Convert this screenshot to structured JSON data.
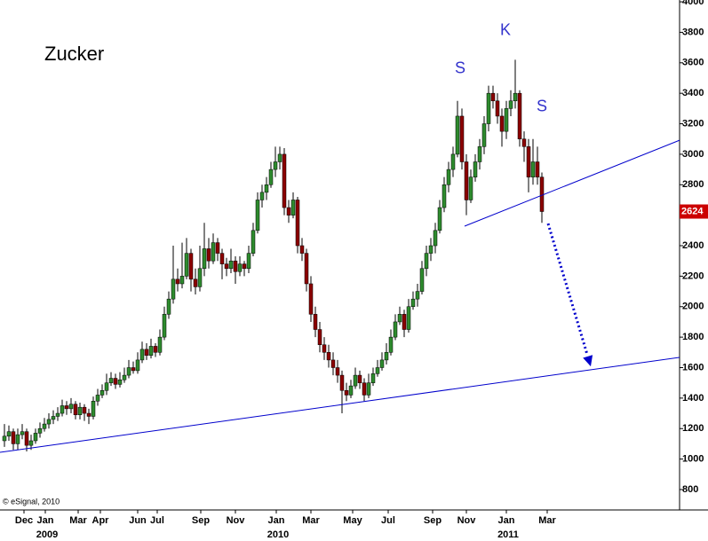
{
  "chart_data": {
    "type": "candlestick",
    "title": "Zucker",
    "watermark": "© eSignal, 2010",
    "last_price": 2624,
    "up_color": "#2e8b2e",
    "down_color": "#8b0000",
    "line_color": "#0000cc",
    "last_price_color": "#cc0000",
    "xlim": [
      -1,
      152
    ],
    "ylim": [
      666,
      4012
    ],
    "yticks": [
      800,
      1000,
      1200,
      1400,
      1600,
      1800,
      2000,
      2200,
      2400,
      2600,
      2800,
      3000,
      3200,
      3400,
      3600,
      3800,
      4000
    ],
    "xticks": [
      {
        "value": 4.4,
        "label": "Dec"
      },
      {
        "value": 9.2,
        "label": "Jan"
      },
      {
        "value": 16.6,
        "label": "Mar"
      },
      {
        "value": 21.6,
        "label": "Apr"
      },
      {
        "value": 30,
        "label": "Jun"
      },
      {
        "value": 34.4,
        "label": "Jul"
      },
      {
        "value": 44.2,
        "label": "Sep"
      },
      {
        "value": 52,
        "label": "Nov"
      },
      {
        "value": 61.2,
        "label": "Jan"
      },
      {
        "value": 69,
        "label": "Mar"
      },
      {
        "value": 78.4,
        "label": "May"
      },
      {
        "value": 86.4,
        "label": "Jul"
      },
      {
        "value": 96.4,
        "label": "Sep"
      },
      {
        "value": 104,
        "label": "Nov"
      },
      {
        "value": 113,
        "label": "Jan"
      },
      {
        "value": 122.2,
        "label": "Mar"
      }
    ],
    "year_labels": [
      {
        "value": 9.6,
        "label": "2009"
      },
      {
        "value": 61.6,
        "label": "2010"
      },
      {
        "value": 113.4,
        "label": "2011"
      }
    ],
    "annotations": [
      {
        "text": "S",
        "x": 102.6,
        "y": 3560
      },
      {
        "text": "K",
        "x": 112.8,
        "y": 3810
      },
      {
        "text": "S",
        "x": 121,
        "y": 3310
      }
    ],
    "trendlines": [
      {
        "x": [
          -1,
          152
        ],
        "y": [
          1044,
          1667
        ]
      },
      {
        "x": [
          103.6,
          152
        ],
        "y": [
          2528,
          3092
        ]
      }
    ],
    "arrow": {
      "x": [
        122.4,
        132
      ],
      "y": [
        2545,
        1608
      ]
    },
    "candles": [
      [
        1120,
        1230,
        1080,
        1150
      ],
      [
        1150,
        1220,
        1120,
        1180
      ],
      [
        1180,
        1200,
        1060,
        1100
      ],
      [
        1100,
        1200,
        1060,
        1160
      ],
      [
        1160,
        1230,
        1130,
        1180
      ],
      [
        1180,
        1200,
        1050,
        1090
      ],
      [
        1090,
        1160,
        1060,
        1120
      ],
      [
        1120,
        1200,
        1100,
        1170
      ],
      [
        1170,
        1240,
        1140,
        1200
      ],
      [
        1200,
        1270,
        1180,
        1230
      ],
      [
        1230,
        1300,
        1200,
        1260
      ],
      [
        1260,
        1320,
        1230,
        1280
      ],
      [
        1280,
        1340,
        1250,
        1300
      ],
      [
        1300,
        1390,
        1280,
        1350
      ],
      [
        1350,
        1380,
        1290,
        1330
      ],
      [
        1330,
        1400,
        1300,
        1360
      ],
      [
        1360,
        1380,
        1260,
        1290
      ],
      [
        1290,
        1370,
        1260,
        1340
      ],
      [
        1340,
        1360,
        1250,
        1300
      ],
      [
        1300,
        1330,
        1230,
        1280
      ],
      [
        1280,
        1410,
        1260,
        1380
      ],
      [
        1380,
        1460,
        1350,
        1420
      ],
      [
        1420,
        1490,
        1400,
        1450
      ],
      [
        1450,
        1560,
        1420,
        1500
      ],
      [
        1500,
        1570,
        1480,
        1530
      ],
      [
        1530,
        1560,
        1460,
        1490
      ],
      [
        1490,
        1570,
        1470,
        1520
      ],
      [
        1520,
        1600,
        1500,
        1550
      ],
      [
        1550,
        1650,
        1530,
        1600
      ],
      [
        1600,
        1640,
        1560,
        1580
      ],
      [
        1580,
        1700,
        1560,
        1650
      ],
      [
        1650,
        1770,
        1630,
        1720
      ],
      [
        1720,
        1760,
        1650,
        1680
      ],
      [
        1680,
        1790,
        1660,
        1740
      ],
      [
        1740,
        1760,
        1670,
        1700
      ],
      [
        1700,
        1850,
        1680,
        1800
      ],
      [
        1800,
        2000,
        1780,
        1950
      ],
      [
        1950,
        2100,
        1920,
        2050
      ],
      [
        2050,
        2400,
        2020,
        2180
      ],
      [
        2180,
        2250,
        2100,
        2150
      ],
      [
        2150,
        2420,
        2120,
        2200
      ],
      [
        2200,
        2450,
        2180,
        2350
      ],
      [
        2350,
        2380,
        2100,
        2180
      ],
      [
        2180,
        2250,
        2080,
        2130
      ],
      [
        2130,
        2400,
        2100,
        2250
      ],
      [
        2250,
        2550,
        2200,
        2380
      ],
      [
        2380,
        2450,
        2250,
        2300
      ],
      [
        2300,
        2480,
        2280,
        2420
      ],
      [
        2420,
        2450,
        2300,
        2350
      ],
      [
        2350,
        2380,
        2180,
        2280
      ],
      [
        2280,
        2320,
        2200,
        2250
      ],
      [
        2250,
        2380,
        2220,
        2300
      ],
      [
        2300,
        2330,
        2150,
        2230
      ],
      [
        2230,
        2330,
        2200,
        2280
      ],
      [
        2280,
        2300,
        2200,
        2250
      ],
      [
        2250,
        2400,
        2220,
        2350
      ],
      [
        2350,
        2550,
        2330,
        2500
      ],
      [
        2500,
        2750,
        2480,
        2700
      ],
      [
        2700,
        2800,
        2650,
        2750
      ],
      [
        2750,
        2850,
        2700,
        2800
      ],
      [
        2800,
        2950,
        2780,
        2900
      ],
      [
        2900,
        3050,
        2850,
        2950
      ],
      [
        2950,
        3050,
        2900,
        3000
      ],
      [
        3000,
        3040,
        2600,
        2650
      ],
      [
        2650,
        2700,
        2550,
        2600
      ],
      [
        2600,
        2750,
        2580,
        2700
      ],
      [
        2700,
        2720,
        2350,
        2400
      ],
      [
        2400,
        2450,
        2300,
        2350
      ],
      [
        2350,
        2380,
        2100,
        2150
      ],
      [
        2150,
        2200,
        1900,
        1950
      ],
      [
        1950,
        2000,
        1800,
        1850
      ],
      [
        1850,
        1900,
        1700,
        1750
      ],
      [
        1750,
        1800,
        1650,
        1700
      ],
      [
        1700,
        1750,
        1600,
        1650
      ],
      [
        1650,
        1700,
        1550,
        1600
      ],
      [
        1600,
        1650,
        1500,
        1550
      ],
      [
        1550,
        1580,
        1300,
        1450
      ],
      [
        1450,
        1500,
        1380,
        1420
      ],
      [
        1420,
        1520,
        1400,
        1480
      ],
      [
        1480,
        1600,
        1460,
        1550
      ],
      [
        1550,
        1580,
        1460,
        1500
      ],
      [
        1500,
        1530,
        1380,
        1420
      ],
      [
        1420,
        1560,
        1400,
        1500
      ],
      [
        1500,
        1600,
        1480,
        1560
      ],
      [
        1560,
        1650,
        1540,
        1600
      ],
      [
        1600,
        1700,
        1580,
        1650
      ],
      [
        1650,
        1760,
        1620,
        1700
      ],
      [
        1700,
        1850,
        1680,
        1800
      ],
      [
        1800,
        1950,
        1780,
        1900
      ],
      [
        1900,
        2000,
        1880,
        1950
      ],
      [
        1950,
        1980,
        1800,
        1850
      ],
      [
        1850,
        2050,
        1830,
        2000
      ],
      [
        2000,
        2100,
        1980,
        2050
      ],
      [
        2050,
        2150,
        2000,
        2100
      ],
      [
        2100,
        2300,
        2080,
        2250
      ],
      [
        2250,
        2400,
        2200,
        2350
      ],
      [
        2350,
        2450,
        2300,
        2400
      ],
      [
        2400,
        2550,
        2350,
        2500
      ],
      [
        2500,
        2700,
        2480,
        2650
      ],
      [
        2650,
        2850,
        2620,
        2800
      ],
      [
        2800,
        2950,
        2750,
        2900
      ],
      [
        2900,
        3050,
        2850,
        3000
      ],
      [
        3000,
        3350,
        2980,
        3250
      ],
      [
        3250,
        3300,
        2900,
        2950
      ],
      [
        2950,
        3000,
        2600,
        2700
      ],
      [
        2700,
        2900,
        2680,
        2850
      ],
      [
        2850,
        3000,
        2820,
        2950
      ],
      [
        2950,
        3100,
        2900,
        3050
      ],
      [
        3050,
        3250,
        3000,
        3200
      ],
      [
        3200,
        3450,
        3150,
        3400
      ],
      [
        3400,
        3450,
        3300,
        3350
      ],
      [
        3350,
        3400,
        3200,
        3250
      ],
      [
        3250,
        3300,
        3050,
        3150
      ],
      [
        3150,
        3350,
        3100,
        3300
      ],
      [
        3300,
        3420,
        3250,
        3350
      ],
      [
        3350,
        3620,
        3300,
        3400
      ],
      [
        3400,
        3420,
        3050,
        3100
      ],
      [
        3100,
        3150,
        2950,
        3050
      ],
      [
        3050,
        3100,
        2750,
        2850
      ],
      [
        2850,
        3100,
        2800,
        2950
      ],
      [
        2950,
        3050,
        2800,
        2850
      ],
      [
        2850,
        2880,
        2550,
        2624
      ]
    ]
  }
}
